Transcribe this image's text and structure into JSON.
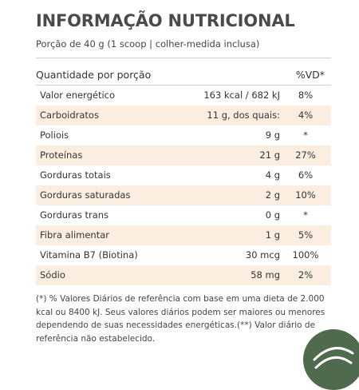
{
  "title": "INFORMAÇÃO NUTRICIONAL",
  "serving": "Porção de 40 g (1 scoop | colher-medida inclusa)",
  "header": {
    "quantity_label": "Quantidade por porção",
    "dv_label": "%VD*"
  },
  "rows": [
    {
      "name": "Valor energético",
      "amount": "163 kcal / 682 kJ",
      "dv": "8%",
      "shaded": false
    },
    {
      "name": "Carboidratos",
      "amount": "11 g, dos quais:",
      "dv": "4%",
      "shaded": true
    },
    {
      "name": "Poliois",
      "amount": "9 g",
      "dv": "*",
      "shaded": false
    },
    {
      "name": "Proteínas",
      "amount": "21 g",
      "dv": "27%",
      "shaded": true
    },
    {
      "name": "Gorduras totais",
      "amount": "4 g",
      "dv": "6%",
      "shaded": false
    },
    {
      "name": "Gorduras saturadas",
      "amount": "2 g",
      "dv": "10%",
      "shaded": true
    },
    {
      "name": "Gorduras trans",
      "amount": "0 g",
      "dv": "*",
      "shaded": false
    },
    {
      "name": "Fibra alimentar",
      "amount": "1 g",
      "dv": "5%",
      "shaded": true
    },
    {
      "name": "Vitamina B7 (Biotina)",
      "amount": "30 mcg",
      "dv": "100%",
      "shaded": false
    },
    {
      "name": "Sódio",
      "amount": "58 mg",
      "dv": "2%",
      "shaded": true
    }
  ],
  "footnote": "(*) % Valores Diários de referência com base em uma dieta de 2.000\nkcal ou 8400 kJ. Seus valores diários podem ser maiores ou menores\ndependendo de suas necessidades energéticas.(**) Valor diário de\nreferência não estabelecido.",
  "colors": {
    "shade": "#fbeee0",
    "badge": "#4f6a4c"
  }
}
